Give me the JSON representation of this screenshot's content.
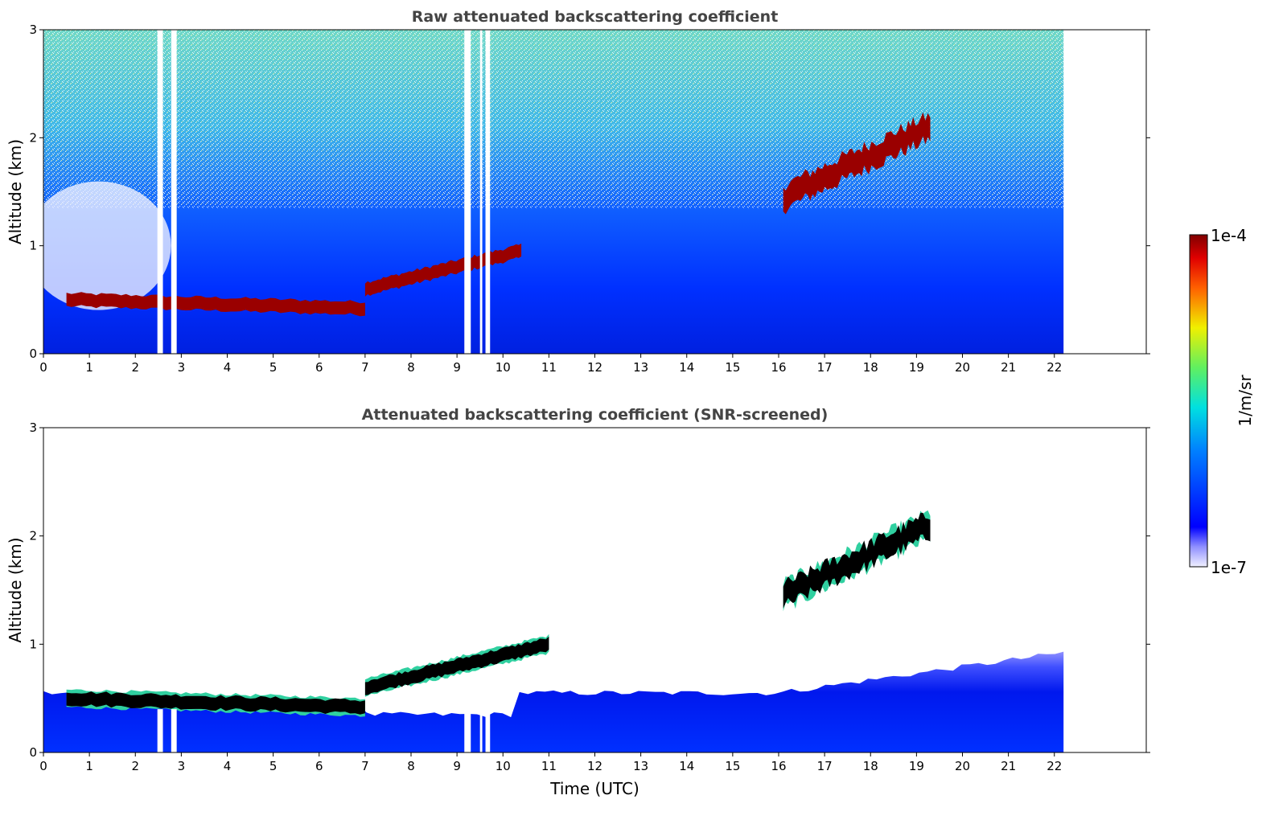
{
  "chart_data": {
    "type": "heatmap",
    "panels": [
      {
        "id": "raw",
        "title": "Raw attenuated backscattering coefficient",
        "ylabel": "Altitude (km)",
        "xlabel": "",
        "xlim": [
          0,
          24
        ],
        "ylim": [
          0,
          3
        ],
        "xticks": [
          "0",
          "1",
          "2",
          "3",
          "4",
          "5",
          "6",
          "7",
          "8",
          "9",
          "10",
          "11",
          "12",
          "13",
          "14",
          "15",
          "16",
          "17",
          "18",
          "19",
          "20",
          "21",
          "22"
        ],
        "yticks": [
          "0",
          "1",
          "2",
          "3"
        ],
        "data_end_time": 22.2,
        "gaps_time": [
          [
            2.48,
            2.6
          ],
          [
            2.78,
            2.9
          ],
          [
            9.16,
            9.3
          ],
          [
            9.5,
            9.55
          ],
          [
            9.62,
            9.72
          ]
        ],
        "features": [
          {
            "name": "boundary layer top",
            "time": [
              0.5,
              7.0
            ],
            "altitude_km": [
              0.5,
              0.42
            ]
          },
          {
            "name": "rising layer",
            "time": [
              7.0,
              10.4
            ],
            "altitude_km": [
              0.6,
              0.95
            ]
          },
          {
            "name": "elevated cloud",
            "time": [
              16.1,
              19.3
            ],
            "altitude_km": [
              1.45,
              2.1
            ]
          }
        ]
      },
      {
        "id": "screened",
        "title": "Attenuated backscattering coefficient (SNR-screened)",
        "ylabel": "Altitude (km)",
        "xlabel": "Time (UTC)",
        "xlim": [
          0,
          24
        ],
        "ylim": [
          0,
          3
        ],
        "xticks": [
          "0",
          "1",
          "2",
          "3",
          "4",
          "5",
          "6",
          "7",
          "8",
          "9",
          "10",
          "11",
          "12",
          "13",
          "14",
          "15",
          "16",
          "17",
          "18",
          "19",
          "20",
          "21",
          "22"
        ],
        "yticks": [
          "0",
          "1",
          "2",
          "3"
        ],
        "data_end_time": 22.2,
        "features": [
          {
            "name": "boundary layer top",
            "time": [
              0.5,
              7.0
            ],
            "altitude_km": [
              0.5,
              0.42
            ]
          },
          {
            "name": "rising layer",
            "time": [
              7.0,
              11.0
            ],
            "altitude_km": [
              0.6,
              1.0
            ]
          },
          {
            "name": "elevated cloud",
            "time": [
              16.1,
              19.3
            ],
            "altitude_km": [
              1.45,
              2.1
            ]
          }
        ]
      }
    ],
    "colorbar": {
      "label": "1/m/sr",
      "min_label": "1e-7",
      "max_label": "1e-4",
      "scale": "log",
      "colormap": "jet"
    }
  },
  "colors": {
    "title": "#444444",
    "axis": "#000000",
    "background": "#ffffff"
  }
}
